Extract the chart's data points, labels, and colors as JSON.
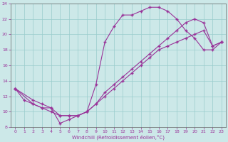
{
  "xlabel": "Windchill (Refroidissement éolien,°C)",
  "bg_color": "#cce8e8",
  "line_color": "#993399",
  "grid_color": "#99cccc",
  "xlim": [
    -0.5,
    23.5
  ],
  "ylim": [
    8,
    24
  ],
  "xticks": [
    0,
    1,
    2,
    3,
    4,
    5,
    6,
    7,
    8,
    9,
    10,
    11,
    12,
    13,
    14,
    15,
    16,
    17,
    18,
    19,
    20,
    21,
    22,
    23
  ],
  "yticks": [
    8,
    10,
    12,
    14,
    16,
    18,
    20,
    22,
    24
  ],
  "curve1_x": [
    0,
    1,
    2,
    3,
    4,
    5,
    6,
    7,
    8,
    9,
    10,
    11,
    12,
    13,
    14,
    15,
    16,
    17,
    18,
    19,
    20,
    21,
    22,
    23
  ],
  "curve1_y": [
    13.0,
    11.5,
    11.0,
    10.5,
    10.5,
    8.5,
    9.0,
    9.5,
    10.0,
    13.5,
    19.0,
    21.0,
    22.5,
    22.5,
    23.0,
    23.5,
    23.5,
    23.0,
    22.0,
    20.5,
    19.5,
    18.0,
    18.0,
    19.0
  ],
  "curve2_x": [
    0,
    2,
    3,
    4,
    5,
    6,
    7,
    8,
    9,
    10,
    11,
    12,
    13,
    14,
    15,
    16,
    17,
    18,
    19,
    20,
    21,
    22,
    23
  ],
  "curve2_y": [
    13.0,
    11.0,
    10.5,
    10.0,
    9.5,
    9.5,
    9.5,
    10.0,
    11.0,
    12.5,
    13.5,
    14.5,
    15.5,
    16.5,
    17.5,
    18.5,
    19.5,
    20.5,
    21.5,
    22.0,
    21.5,
    18.5,
    19.0
  ],
  "curve3_x": [
    0,
    2,
    3,
    4,
    5,
    6,
    7,
    8,
    9,
    10,
    11,
    12,
    13,
    14,
    15,
    16,
    17,
    18,
    19,
    20,
    21,
    22,
    23
  ],
  "curve3_y": [
    13.0,
    11.5,
    11.0,
    10.5,
    9.5,
    9.5,
    9.5,
    10.0,
    11.0,
    12.0,
    13.0,
    14.0,
    15.0,
    16.0,
    17.0,
    18.0,
    18.5,
    19.0,
    19.5,
    20.0,
    20.5,
    18.5,
    19.0
  ]
}
